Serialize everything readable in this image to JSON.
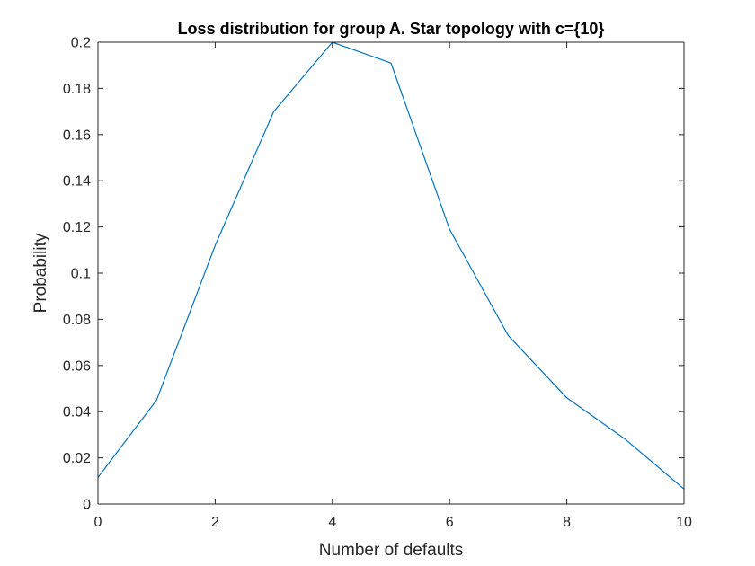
{
  "chart_data": {
    "type": "line",
    "title": "Loss distribution for group A. Star topology with c={10}",
    "xlabel": "Number of defaults",
    "ylabel": "Probability",
    "xlim": [
      0,
      10
    ],
    "ylim": [
      0,
      0.2
    ],
    "x_ticks": [
      0,
      2,
      4,
      6,
      8,
      10
    ],
    "x_tick_labels": [
      "0",
      "2",
      "4",
      "6",
      "8",
      "10"
    ],
    "y_ticks": [
      0,
      0.02,
      0.04,
      0.06,
      0.08,
      0.1,
      0.12,
      0.14,
      0.16,
      0.18,
      0.2
    ],
    "y_tick_labels": [
      "0",
      "0.02",
      "0.04",
      "0.06",
      "0.08",
      "0.1",
      "0.12",
      "0.14",
      "0.16",
      "0.18",
      "0.2"
    ],
    "grid": false,
    "legend": "none",
    "series": [
      {
        "color": "#0072bd",
        "x": [
          0,
          1,
          2,
          3,
          4,
          5,
          6,
          7,
          8,
          9,
          10
        ],
        "y": [
          0.0115,
          0.045,
          0.112,
          0.17,
          0.2,
          0.191,
          0.119,
          0.073,
          0.046,
          0.028,
          0.0065
        ]
      }
    ]
  }
}
